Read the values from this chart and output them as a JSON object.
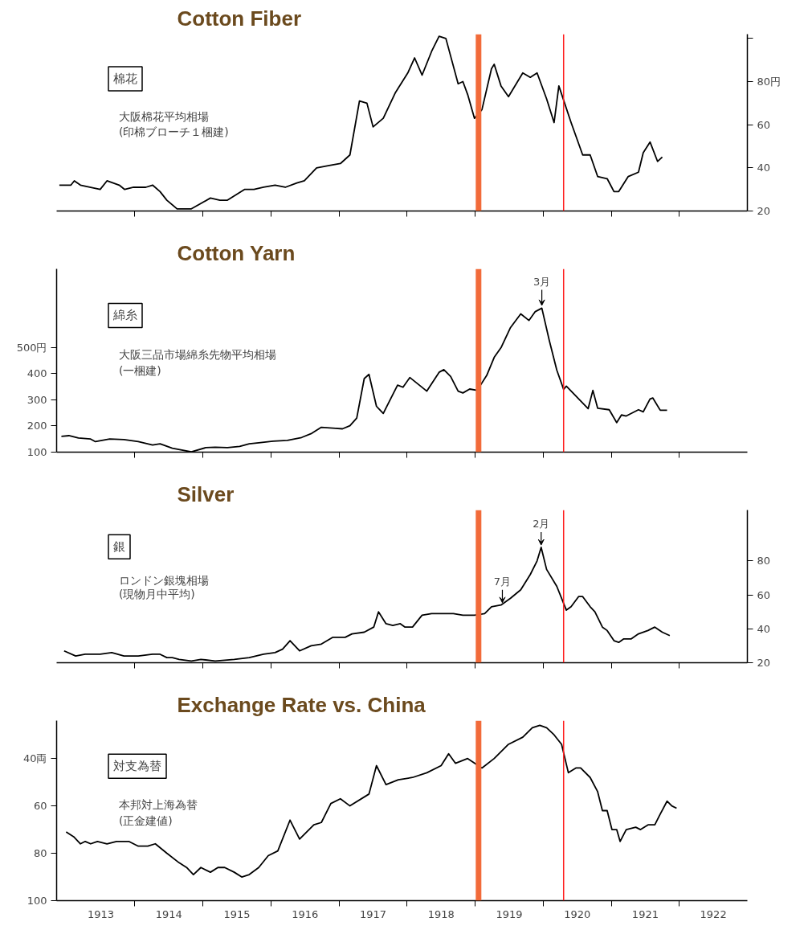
{
  "chart_data": [
    {
      "type": "line",
      "title": "Cotton Fiber",
      "subtitle": "棉花",
      "annotations": [
        "大阪棉花平均相場",
        "(印棉ブローチ１梱建)"
      ],
      "xlim": [
        1912.85,
        1923.0
      ],
      "xticks": [
        {
          "value": 1914,
          "label": null
        },
        {
          "value": 1915,
          "label": null
        },
        {
          "value": 1916,
          "label": null
        },
        {
          "value": 1917,
          "label": null
        },
        {
          "value": 1918,
          "label": null
        },
        {
          "value": 1919,
          "label": null
        },
        {
          "value": 1920,
          "label": null
        },
        {
          "value": 1921,
          "label": null
        },
        {
          "value": 1922,
          "label": null
        }
      ],
      "ylim": [
        20,
        102
      ],
      "yticks": [
        20,
        40,
        60,
        {
          "value": 80,
          "label": "80円"
        },
        {
          "value": 100,
          "label": null
        }
      ],
      "tick_labels": "y",
      "ref_lines": [
        {
          "axis": "x",
          "value": 1919.05,
          "color": "#f26b3a"
        },
        {
          "axis": "x",
          "value": 1920.3,
          "color": "#ff2020"
        }
      ],
      "series": [
        {
          "color": "#000000",
          "x": [
            1912.89,
            1913.06,
            1913.11,
            1913.2,
            1913.49,
            1913.59,
            1913.77,
            1913.85,
            1913.98,
            1914.16,
            1914.26,
            1914.37,
            1914.47,
            1914.62,
            1914.83,
            1915.11,
            1915.25,
            1915.36,
            1915.61,
            1915.75,
            1915.89,
            1916.06,
            1916.21,
            1916.38,
            1916.49,
            1916.67,
            1916.84,
            1917.02,
            1917.16,
            1917.3,
            1917.41,
            1917.5,
            1917.65,
            1917.83,
            1918.01,
            1918.11,
            1918.22,
            1918.36,
            1918.47,
            1918.57,
            1918.75,
            1918.82,
            1918.89,
            1918.99,
            1919.1,
            1919.24,
            1919.28,
            1919.38,
            1919.49,
            1919.7,
            1919.81,
            1919.91,
            1920.05,
            1920.16,
            1920.23,
            1920.41,
            1920.58,
            1920.69,
            1920.8,
            1920.94,
            1921.04,
            1921.11,
            1921.25,
            1921.4,
            1921.47,
            1921.57,
            1921.68,
            1921.75
          ],
          "values": [
            32,
            32,
            34,
            32,
            30,
            34,
            32,
            30,
            31,
            31,
            32,
            29,
            25,
            21,
            21,
            26,
            25,
            25,
            30,
            30,
            31,
            32,
            31,
            33,
            34,
            40,
            41,
            42,
            46,
            71,
            70,
            59,
            63,
            75,
            84,
            91,
            83,
            94,
            101,
            100,
            79,
            80,
            74,
            63,
            67,
            86,
            88,
            78,
            73,
            84,
            82,
            84,
            72,
            61,
            78,
            61,
            46,
            46,
            36,
            35,
            29,
            29,
            36,
            38,
            47,
            52,
            43,
            45
          ]
        }
      ]
    },
    {
      "type": "line",
      "title": "Cotton Yarn",
      "subtitle": "綿糸",
      "annotations": [
        "大阪三品市場綿糸先物平均相場",
        "(一梱建)",
        {
          "text": "3月",
          "x": 1919.98,
          "y": 650
        }
      ],
      "xlim": [
        1912.85,
        1923.0
      ],
      "xticks": [
        {
          "value": 1914,
          "label": null
        },
        {
          "value": 1915,
          "label": null
        },
        {
          "value": 1916,
          "label": null
        },
        {
          "value": 1917,
          "label": null
        },
        {
          "value": 1918,
          "label": null
        },
        {
          "value": 1919,
          "label": null
        },
        {
          "value": 1920,
          "label": null
        },
        {
          "value": 1921,
          "label": null
        },
        {
          "value": 1922,
          "label": null
        }
      ],
      "ylim": [
        100,
        800
      ],
      "yticks": [
        100,
        200,
        300,
        400,
        {
          "value": 500,
          "label": "500円"
        }
      ],
      "tick_labels": "y",
      "ref_lines": [
        {
          "axis": "x",
          "value": 1919.05,
          "color": "#f26b3a"
        },
        {
          "axis": "x",
          "value": 1920.3,
          "color": "#ff2020"
        }
      ],
      "series": [
        {
          "color": "#000000",
          "x": [
            1912.92,
            1913.03,
            1913.17,
            1913.35,
            1913.42,
            1913.63,
            1913.84,
            1914.05,
            1914.26,
            1914.37,
            1914.55,
            1914.83,
            1915.04,
            1915.18,
            1915.36,
            1915.54,
            1915.68,
            1915.82,
            1916.03,
            1916.24,
            1916.45,
            1916.6,
            1916.74,
            1916.95,
            1917.05,
            1917.16,
            1917.26,
            1917.37,
            1917.44,
            1917.55,
            1917.65,
            1917.86,
            1917.94,
            1918.04,
            1918.29,
            1918.47,
            1918.54,
            1918.64,
            1918.75,
            1918.82,
            1918.92,
            1919.03,
            1919.17,
            1919.28,
            1919.38,
            1919.52,
            1919.67,
            1919.79,
            1919.88,
            1919.98,
            1920.09,
            1920.2,
            1920.3,
            1920.34,
            1920.66,
            1920.73,
            1920.8,
            1920.97,
            1921.08,
            1921.15,
            1921.22,
            1921.4,
            1921.47,
            1921.57,
            1921.61,
            1921.72,
            1921.82
          ],
          "values": [
            160,
            163,
            154,
            150,
            140,
            150,
            148,
            140,
            127,
            132,
            115,
            101,
            117,
            119,
            117,
            122,
            132,
            136,
            142,
            145,
            156,
            172,
            195,
            191,
            189,
            201,
            230,
            381,
            397,
            275,
            248,
            356,
            348,
            385,
            333,
            405,
            415,
            389,
            333,
            326,
            341,
            336,
            393,
            462,
            499,
            576,
            628,
            603,
            636,
            650,
            526,
            413,
            340,
            352,
            266,
            336,
            268,
            262,
            213,
            242,
            238,
            262,
            254,
            303,
            307,
            260,
            260
          ]
        }
      ]
    },
    {
      "type": "line",
      "title": "Silver",
      "subtitle": "銀",
      "annotations": [
        "ロンドン銀塊相場",
        "(現物月中平均)",
        {
          "text": "2月",
          "x": 1919.97,
          "y": 88
        },
        {
          "text": "7月",
          "x": 1919.4,
          "y": 54
        }
      ],
      "xlim": [
        1912.85,
        1923.0
      ],
      "xticks": [
        {
          "value": 1914,
          "label": null
        },
        {
          "value": 1915,
          "label": null
        },
        {
          "value": 1916,
          "label": null
        },
        {
          "value": 1917,
          "label": null
        },
        {
          "value": 1918,
          "label": null
        },
        {
          "value": 1919,
          "label": null
        },
        {
          "value": 1920,
          "label": null
        },
        {
          "value": 1921,
          "label": null
        },
        {
          "value": 1922,
          "label": null
        }
      ],
      "ylim": [
        20,
        110
      ],
      "yticks": [
        20,
        40,
        60,
        80
      ],
      "tick_labels": "y",
      "ref_lines": [
        {
          "axis": "x",
          "value": 1919.05,
          "color": "#f26b3a"
        },
        {
          "axis": "x",
          "value": 1920.3,
          "color": "#ff2020"
        }
      ],
      "series": [
        {
          "color": "#000000",
          "x": [
            1912.96,
            1913.13,
            1913.27,
            1913.49,
            1913.66,
            1913.84,
            1914.05,
            1914.26,
            1914.37,
            1914.47,
            1914.55,
            1914.65,
            1914.83,
            1914.97,
            1915.18,
            1915.46,
            1915.68,
            1915.89,
            1916.06,
            1916.17,
            1916.28,
            1916.42,
            1916.59,
            1916.74,
            1916.91,
            1917.09,
            1917.19,
            1917.37,
            1917.51,
            1917.58,
            1917.69,
            1917.79,
            1917.9,
            1917.97,
            1918.08,
            1918.22,
            1918.36,
            1918.57,
            1918.68,
            1918.82,
            1918.99,
            1919.14,
            1919.24,
            1919.38,
            1919.52,
            1919.67,
            1919.81,
            1919.91,
            1919.97,
            1920.05,
            1920.2,
            1920.34,
            1920.41,
            1920.52,
            1920.58,
            1920.69,
            1920.76,
            1920.87,
            1920.94,
            1921.04,
            1921.11,
            1921.18,
            1921.29,
            1921.4,
            1921.54,
            1921.64,
            1921.75,
            1921.86
          ],
          "values": [
            27,
            24,
            25,
            25,
            26,
            24,
            24,
            25,
            25,
            23,
            23,
            22,
            21,
            22,
            21,
            22,
            23,
            25,
            26,
            28,
            33,
            27,
            30,
            31,
            35,
            35,
            37,
            38,
            41,
            50,
            43,
            42,
            43,
            41,
            41,
            48,
            49,
            49,
            49,
            48,
            48,
            49,
            53,
            54,
            58,
            63,
            72,
            80,
            88,
            75,
            65,
            51,
            53,
            59,
            59,
            53,
            50,
            41,
            39,
            33,
            32,
            34,
            34,
            37,
            39,
            41,
            38,
            36
          ]
        }
      ]
    },
    {
      "type": "line",
      "title": "Exchange Rate vs. China",
      "subtitle": "対支為替",
      "annotations": [
        "本邦対上海為替",
        "(正金建値)"
      ],
      "xlim": [
        1912.85,
        1923.0
      ],
      "xticks": [
        {
          "value": 1913.5,
          "label": "1913"
        },
        {
          "value": 1914,
          "label": null
        },
        {
          "value": 1914.5,
          "label": "1914"
        },
        {
          "value": 1915,
          "label": null
        },
        {
          "value": 1915.5,
          "label": "1915"
        },
        {
          "value": 1916,
          "label": null
        },
        {
          "value": 1916.5,
          "label": "1916"
        },
        {
          "value": 1917,
          "label": null
        },
        {
          "value": 1917.5,
          "label": "1917"
        },
        {
          "value": 1918,
          "label": null
        },
        {
          "value": 1918.5,
          "label": "1918"
        },
        {
          "value": 1919,
          "label": null
        },
        {
          "value": 1919.5,
          "label": "1919"
        },
        {
          "value": 1920,
          "label": null
        },
        {
          "value": 1920.5,
          "label": "1920"
        },
        {
          "value": 1921,
          "label": null
        },
        {
          "value": 1921.5,
          "label": "1921"
        },
        {
          "value": 1922,
          "label": null
        },
        {
          "value": 1922.5,
          "label": "1922"
        }
      ],
      "ylim": [
        100,
        24
      ],
      "yticks": [
        {
          "value": 40,
          "label": "40両"
        },
        60,
        80,
        100
      ],
      "ref_lines": [
        {
          "axis": "x",
          "value": 1919.05,
          "color": "#f26b3a"
        },
        {
          "axis": "x",
          "value": 1920.3,
          "color": "#ff2020"
        }
      ],
      "series": [
        {
          "color": "#000000",
          "x": [
            1912.99,
            1913.1,
            1913.2,
            1913.27,
            1913.35,
            1913.45,
            1913.59,
            1913.73,
            1913.91,
            1914.05,
            1914.19,
            1914.3,
            1914.47,
            1914.65,
            1914.76,
            1914.86,
            1914.97,
            1915.11,
            1915.22,
            1915.32,
            1915.46,
            1915.57,
            1915.68,
            1915.82,
            1915.96,
            1916.1,
            1916.28,
            1916.42,
            1916.63,
            1916.74,
            1916.88,
            1917.02,
            1917.16,
            1917.44,
            1917.55,
            1917.69,
            1917.87,
            1918.08,
            1918.29,
            1918.5,
            1918.61,
            1918.71,
            1918.89,
            1919.1,
            1919.28,
            1919.49,
            1919.7,
            1919.84,
            1919.95,
            1920.05,
            1920.16,
            1920.27,
            1920.37,
            1920.48,
            1920.55,
            1920.69,
            1920.8,
            1920.87,
            1920.94,
            1921.01,
            1921.08,
            1921.13,
            1921.22,
            1921.36,
            1921.43,
            1921.54,
            1921.64,
            1921.71,
            1921.82,
            1921.89,
            1921.96
          ],
          "values": [
            71,
            73,
            76,
            75,
            76,
            75,
            76,
            75,
            75,
            77,
            77,
            76,
            80,
            84,
            86,
            89,
            86,
            88,
            86,
            86,
            88,
            90,
            89,
            86,
            81,
            79,
            66,
            74,
            68,
            67,
            59,
            57,
            60,
            55,
            43,
            51,
            49,
            48,
            46,
            43,
            38,
            42,
            40,
            44,
            40,
            34,
            31,
            27,
            26,
            27,
            30,
            34,
            46,
            44,
            44,
            48,
            54,
            62,
            62,
            70,
            70,
            75,
            70,
            69,
            70,
            68,
            68,
            64,
            58,
            60,
            61
          ]
        }
      ]
    }
  ]
}
